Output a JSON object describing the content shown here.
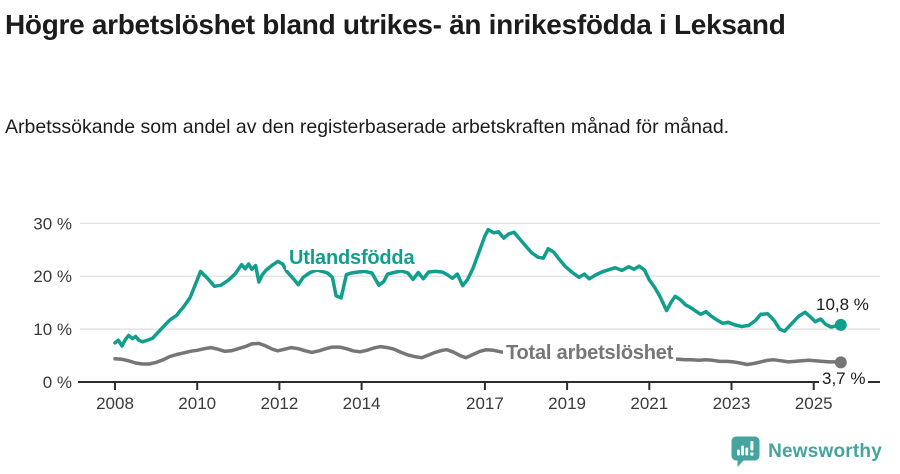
{
  "header": {
    "title": "Högre arbetslöshet bland utrikes- än inrikesfödda i Leksand",
    "subtitle": "Arbetssökande som andel av den registerbaserade arbetskraften månad för månad."
  },
  "footer": {
    "brand": "Newsworthy"
  },
  "chart_data": {
    "type": "line",
    "title": "Högre arbetslöshet bland utrikes- än inrikesfödda i Leksand",
    "subtitle": "Arbetssökande som andel av den registerbaserade arbetskraften månad för månad.",
    "xlabel": "",
    "ylabel": "",
    "ylim": [
      0,
      33
    ],
    "x_range_years": [
      2008,
      2025.7
    ],
    "grid": "horizontal-only",
    "legend_position": "inline-labels-on-lines",
    "colors": {
      "grid": "#dedede",
      "axis": "#2d2d2d",
      "axis_text": "#3a3a3a"
    },
    "yticks": [
      {
        "value": 0,
        "label": "0 %"
      },
      {
        "value": 10,
        "label": "10 %"
      },
      {
        "value": 20,
        "label": "20 %"
      },
      {
        "value": 30,
        "label": "30 %"
      }
    ],
    "xticks": [
      {
        "value": 2008,
        "label": "2008"
      },
      {
        "value": 2010,
        "label": "2010"
      },
      {
        "value": 2012,
        "label": "2012"
      },
      {
        "value": 2014,
        "label": "2014"
      },
      {
        "value": 2017,
        "label": "2017"
      },
      {
        "value": 2019,
        "label": "2019"
      },
      {
        "value": 2021,
        "label": "2021"
      },
      {
        "value": 2023,
        "label": "2023"
      },
      {
        "value": 2025,
        "label": "2025"
      }
    ],
    "series": [
      {
        "name": "Utlandsfödda",
        "color": "#119e8c",
        "end_label": "10,8 %",
        "end_value": 10.8,
        "points": [
          [
            2008.0,
            7.4
          ],
          [
            2008.08,
            7.9
          ],
          [
            2008.17,
            6.8
          ],
          [
            2008.25,
            8.0
          ],
          [
            2008.33,
            8.8
          ],
          [
            2008.42,
            8.2
          ],
          [
            2008.5,
            8.6
          ],
          [
            2008.58,
            7.9
          ],
          [
            2008.67,
            7.6
          ],
          [
            2008.75,
            7.8
          ],
          [
            2008.83,
            8.0
          ],
          [
            2008.92,
            8.3
          ],
          [
            2009.0,
            9.0
          ],
          [
            2009.17,
            10.4
          ],
          [
            2009.33,
            11.7
          ],
          [
            2009.5,
            12.6
          ],
          [
            2009.58,
            13.4
          ],
          [
            2009.67,
            14.2
          ],
          [
            2009.83,
            16.0
          ],
          [
            2010.0,
            19.3
          ],
          [
            2010.08,
            20.9
          ],
          [
            2010.25,
            19.6
          ],
          [
            2010.42,
            18.1
          ],
          [
            2010.58,
            18.3
          ],
          [
            2010.75,
            19.2
          ],
          [
            2010.92,
            20.4
          ],
          [
            2011.08,
            22.2
          ],
          [
            2011.17,
            21.4
          ],
          [
            2011.25,
            22.3
          ],
          [
            2011.33,
            21.3
          ],
          [
            2011.42,
            22.0
          ],
          [
            2011.5,
            18.9
          ],
          [
            2011.58,
            20.2
          ],
          [
            2011.67,
            21.1
          ],
          [
            2011.83,
            22.1
          ],
          [
            2011.96,
            22.8
          ],
          [
            2012.08,
            22.3
          ],
          [
            2012.17,
            21.0
          ],
          [
            2012.33,
            19.6
          ],
          [
            2012.46,
            18.4
          ],
          [
            2012.58,
            19.8
          ],
          [
            2012.75,
            20.7
          ],
          [
            2012.92,
            21.2
          ],
          [
            2013.0,
            21.0
          ],
          [
            2013.17,
            20.6
          ],
          [
            2013.29,
            19.8
          ],
          [
            2013.38,
            16.3
          ],
          [
            2013.5,
            15.9
          ],
          [
            2013.63,
            20.3
          ],
          [
            2013.75,
            20.6
          ],
          [
            2013.92,
            20.8
          ],
          [
            2014.08,
            20.9
          ],
          [
            2014.25,
            20.6
          ],
          [
            2014.42,
            18.3
          ],
          [
            2014.54,
            19.0
          ],
          [
            2014.63,
            20.4
          ],
          [
            2014.79,
            20.7
          ],
          [
            2014.96,
            21.0
          ],
          [
            2015.13,
            20.6
          ],
          [
            2015.25,
            19.4
          ],
          [
            2015.38,
            20.7
          ],
          [
            2015.5,
            19.5
          ],
          [
            2015.63,
            20.8
          ],
          [
            2015.79,
            20.9
          ],
          [
            2015.96,
            20.8
          ],
          [
            2016.08,
            20.3
          ],
          [
            2016.21,
            19.6
          ],
          [
            2016.33,
            20.4
          ],
          [
            2016.46,
            18.2
          ],
          [
            2016.58,
            19.4
          ],
          [
            2016.71,
            21.5
          ],
          [
            2016.83,
            24.0
          ],
          [
            2017.0,
            27.6
          ],
          [
            2017.08,
            28.8
          ],
          [
            2017.21,
            28.2
          ],
          [
            2017.33,
            28.4
          ],
          [
            2017.46,
            27.2
          ],
          [
            2017.58,
            28.0
          ],
          [
            2017.71,
            28.3
          ],
          [
            2017.83,
            27.2
          ],
          [
            2017.96,
            26.0
          ],
          [
            2018.13,
            24.5
          ],
          [
            2018.29,
            23.6
          ],
          [
            2018.42,
            23.4
          ],
          [
            2018.54,
            25.2
          ],
          [
            2018.67,
            24.6
          ],
          [
            2018.83,
            23.0
          ],
          [
            2018.96,
            21.8
          ],
          [
            2019.13,
            20.7
          ],
          [
            2019.29,
            19.8
          ],
          [
            2019.42,
            20.4
          ],
          [
            2019.54,
            19.5
          ],
          [
            2019.71,
            20.3
          ],
          [
            2019.88,
            20.9
          ],
          [
            2020.0,
            21.2
          ],
          [
            2020.17,
            21.6
          ],
          [
            2020.33,
            21.1
          ],
          [
            2020.5,
            21.8
          ],
          [
            2020.63,
            21.3
          ],
          [
            2020.75,
            21.9
          ],
          [
            2020.88,
            21.2
          ],
          [
            2021.0,
            19.3
          ],
          [
            2021.13,
            17.9
          ],
          [
            2021.25,
            16.3
          ],
          [
            2021.42,
            13.5
          ],
          [
            2021.54,
            15.2
          ],
          [
            2021.63,
            16.2
          ],
          [
            2021.75,
            15.6
          ],
          [
            2021.88,
            14.6
          ],
          [
            2022.0,
            14.1
          ],
          [
            2022.13,
            13.4
          ],
          [
            2022.25,
            12.8
          ],
          [
            2022.38,
            13.3
          ],
          [
            2022.5,
            12.5
          ],
          [
            2022.63,
            11.8
          ],
          [
            2022.79,
            11.1
          ],
          [
            2022.92,
            11.3
          ],
          [
            2023.08,
            10.8
          ],
          [
            2023.25,
            10.5
          ],
          [
            2023.42,
            10.7
          ],
          [
            2023.58,
            11.6
          ],
          [
            2023.71,
            12.8
          ],
          [
            2023.88,
            12.9
          ],
          [
            2024.04,
            11.6
          ],
          [
            2024.17,
            10.0
          ],
          [
            2024.29,
            9.6
          ],
          [
            2024.46,
            11.0
          ],
          [
            2024.63,
            12.4
          ],
          [
            2024.79,
            13.2
          ],
          [
            2024.92,
            12.3
          ],
          [
            2025.04,
            11.4
          ],
          [
            2025.17,
            11.9
          ],
          [
            2025.29,
            10.9
          ],
          [
            2025.42,
            10.4
          ],
          [
            2025.54,
            10.6
          ],
          [
            2025.66,
            10.8
          ]
        ]
      },
      {
        "name": "Total arbetslöshet",
        "color": "#767676",
        "end_label": "3,7 %",
        "end_value": 3.7,
        "points": [
          [
            2008.0,
            4.4
          ],
          [
            2008.17,
            4.3
          ],
          [
            2008.33,
            4.0
          ],
          [
            2008.5,
            3.6
          ],
          [
            2008.67,
            3.4
          ],
          [
            2008.83,
            3.4
          ],
          [
            2009.0,
            3.7
          ],
          [
            2009.17,
            4.2
          ],
          [
            2009.33,
            4.8
          ],
          [
            2009.5,
            5.2
          ],
          [
            2009.67,
            5.5
          ],
          [
            2009.83,
            5.8
          ],
          [
            2010.0,
            6.0
          ],
          [
            2010.17,
            6.3
          ],
          [
            2010.33,
            6.5
          ],
          [
            2010.5,
            6.2
          ],
          [
            2010.67,
            5.8
          ],
          [
            2010.83,
            5.9
          ],
          [
            2011.0,
            6.3
          ],
          [
            2011.17,
            6.7
          ],
          [
            2011.33,
            7.2
          ],
          [
            2011.5,
            7.3
          ],
          [
            2011.67,
            6.8
          ],
          [
            2011.83,
            6.2
          ],
          [
            2011.96,
            5.9
          ],
          [
            2012.13,
            6.2
          ],
          [
            2012.29,
            6.5
          ],
          [
            2012.46,
            6.3
          ],
          [
            2012.63,
            5.9
          ],
          [
            2012.79,
            5.6
          ],
          [
            2012.96,
            5.9
          ],
          [
            2013.13,
            6.3
          ],
          [
            2013.29,
            6.6
          ],
          [
            2013.46,
            6.6
          ],
          [
            2013.63,
            6.3
          ],
          [
            2013.79,
            5.9
          ],
          [
            2013.96,
            5.7
          ],
          [
            2014.13,
            6.0
          ],
          [
            2014.29,
            6.4
          ],
          [
            2014.46,
            6.7
          ],
          [
            2014.63,
            6.5
          ],
          [
            2014.79,
            6.2
          ],
          [
            2014.96,
            5.6
          ],
          [
            2015.13,
            5.1
          ],
          [
            2015.29,
            4.8
          ],
          [
            2015.46,
            4.6
          ],
          [
            2015.63,
            5.1
          ],
          [
            2015.79,
            5.6
          ],
          [
            2015.96,
            6.0
          ],
          [
            2016.08,
            6.1
          ],
          [
            2016.25,
            5.6
          ],
          [
            2016.42,
            4.9
          ],
          [
            2016.54,
            4.6
          ],
          [
            2016.71,
            5.2
          ],
          [
            2016.88,
            5.8
          ],
          [
            2017.04,
            6.1
          ],
          [
            2017.21,
            6.0
          ],
          [
            2017.38,
            5.7
          ],
          [
            2017.54,
            5.5
          ],
          [
            2017.71,
            5.3
          ],
          [
            2017.88,
            5.2
          ],
          [
            2018.04,
            5.4
          ],
          [
            2018.21,
            5.6
          ],
          [
            2018.38,
            5.5
          ],
          [
            2018.54,
            5.3
          ],
          [
            2018.71,
            5.1
          ],
          [
            2018.88,
            4.9
          ],
          [
            2019.04,
            5.0
          ],
          [
            2019.21,
            5.1
          ],
          [
            2019.38,
            4.9
          ],
          [
            2019.54,
            4.7
          ],
          [
            2019.71,
            4.6
          ],
          [
            2019.88,
            4.7
          ],
          [
            2020.04,
            4.9
          ],
          [
            2020.21,
            5.2
          ],
          [
            2020.38,
            5.4
          ],
          [
            2020.54,
            5.5
          ],
          [
            2020.71,
            5.4
          ],
          [
            2020.88,
            5.2
          ],
          [
            2021.04,
            4.9
          ],
          [
            2021.21,
            4.7
          ],
          [
            2021.38,
            4.5
          ],
          [
            2021.54,
            4.4
          ],
          [
            2021.71,
            4.3
          ],
          [
            2021.88,
            4.2
          ],
          [
            2022.04,
            4.2
          ],
          [
            2022.21,
            4.1
          ],
          [
            2022.38,
            4.2
          ],
          [
            2022.54,
            4.1
          ],
          [
            2022.71,
            3.9
          ],
          [
            2022.88,
            3.9
          ],
          [
            2023.04,
            3.8
          ],
          [
            2023.21,
            3.6
          ],
          [
            2023.38,
            3.3
          ],
          [
            2023.54,
            3.5
          ],
          [
            2023.71,
            3.8
          ],
          [
            2023.88,
            4.1
          ],
          [
            2024.04,
            4.2
          ],
          [
            2024.21,
            4.0
          ],
          [
            2024.38,
            3.8
          ],
          [
            2024.54,
            3.9
          ],
          [
            2024.71,
            4.0
          ],
          [
            2024.88,
            4.1
          ],
          [
            2025.04,
            4.0
          ],
          [
            2025.21,
            3.9
          ],
          [
            2025.38,
            3.8
          ],
          [
            2025.54,
            3.8
          ],
          [
            2025.66,
            3.7
          ]
        ]
      }
    ]
  }
}
